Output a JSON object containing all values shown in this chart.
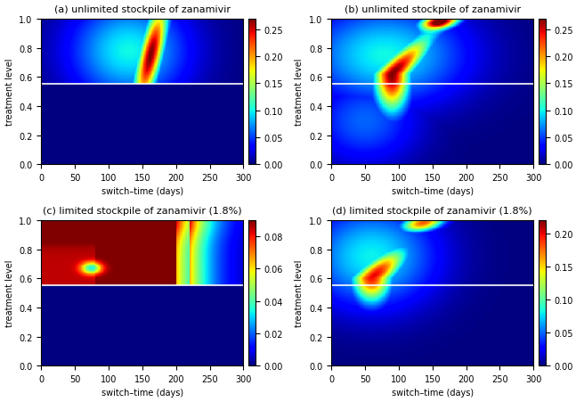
{
  "titles": [
    "(a) unlimited stockpile of zanamivir",
    "(b) unlimited stockpile of zanamivir",
    "(c) limited stockpile of zanamivir (1.8%)",
    "(d) limited stockpile of zanamivir (1.8%)"
  ],
  "xlabel": "switch–time (days)",
  "ylabel": "treatment level",
  "x_ticks": [
    0,
    50,
    100,
    150,
    200,
    250,
    300
  ],
  "y_ticks": [
    0,
    0.2,
    0.4,
    0.6,
    0.8,
    1
  ],
  "white_line_y": 0.55,
  "vmax_ab": 0.27,
  "vmax_c": 0.09,
  "vmax_d": 0.22,
  "cticks_ab": [
    0,
    0.05,
    0.1,
    0.15,
    0.2,
    0.25
  ],
  "cticks_c": [
    0,
    0.02,
    0.04,
    0.06,
    0.08
  ],
  "cticks_d": [
    0,
    0.05,
    0.1,
    0.15,
    0.2
  ]
}
